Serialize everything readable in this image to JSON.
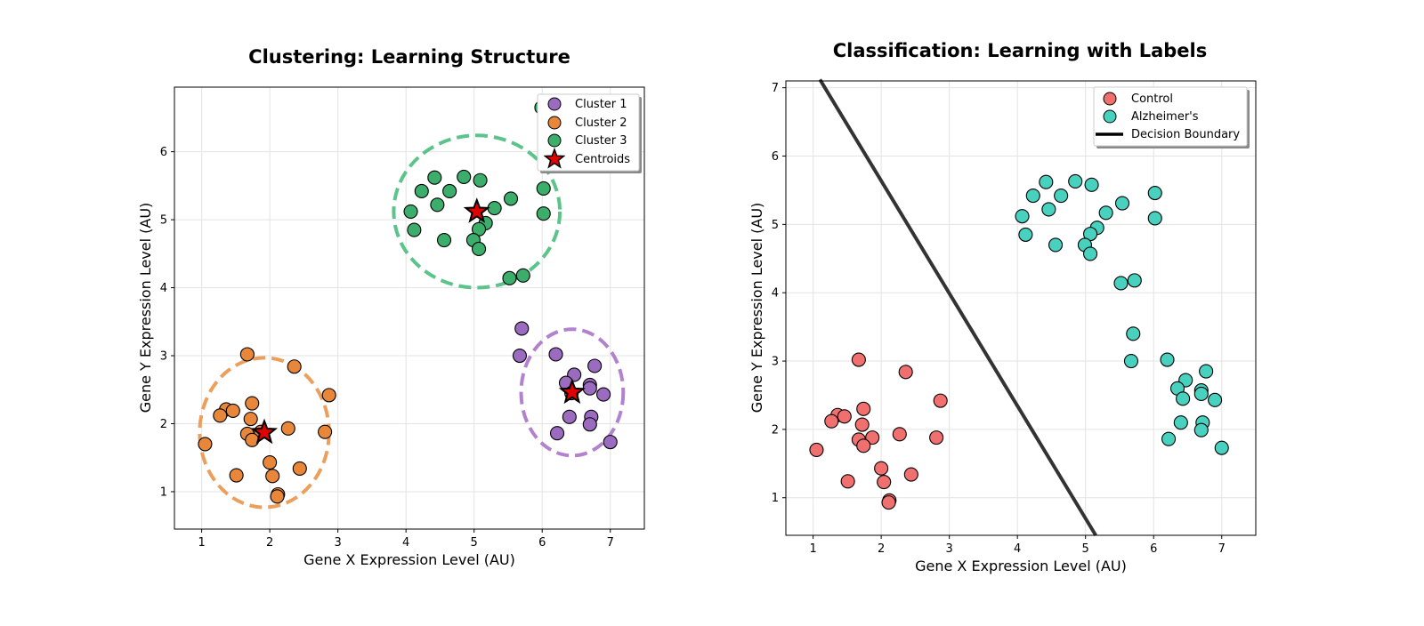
{
  "chart_data": [
    {
      "type": "scatter",
      "title": "Clustering: Learning Structure",
      "xlabel": "Gene X Expression Level (AU)",
      "ylabel": "Gene Y Expression Level (AU)",
      "xlim": [
        0.6,
        7.5
      ],
      "ylim": [
        0.45,
        6.95
      ],
      "xticks": [
        1,
        2,
        3,
        4,
        5,
        6,
        7
      ],
      "yticks": [
        1,
        2,
        3,
        4,
        5,
        6
      ],
      "grid": true,
      "legend_position": "top-right",
      "series": [
        {
          "name": "Cluster 1",
          "color": "#9b6bbf",
          "points": [
            [
              5.7,
              3.4
            ],
            [
              5.67,
              3.0
            ],
            [
              6.2,
              3.02
            ],
            [
              6.77,
              2.85
            ],
            [
              6.47,
              2.72
            ],
            [
              6.35,
              2.6
            ],
            [
              6.7,
              2.57
            ],
            [
              6.7,
              2.52
            ],
            [
              6.43,
              2.45
            ],
            [
              6.9,
              2.43
            ],
            [
              6.4,
              2.1
            ],
            [
              6.72,
              2.1
            ],
            [
              6.7,
              1.99
            ],
            [
              6.22,
              1.86
            ],
            [
              7.0,
              1.73
            ]
          ]
        },
        {
          "name": "Cluster 2",
          "color": "#e8873a",
          "points": [
            [
              1.67,
              3.02
            ],
            [
              2.36,
              2.84
            ],
            [
              2.87,
              2.42
            ],
            [
              1.74,
              2.3
            ],
            [
              1.36,
              2.21
            ],
            [
              1.46,
              2.19
            ],
            [
              1.27,
              2.12
            ],
            [
              1.72,
              2.07
            ],
            [
              2.27,
              1.93
            ],
            [
              1.87,
              1.88
            ],
            [
              2.81,
              1.88
            ],
            [
              1.67,
              1.85
            ],
            [
              1.74,
              1.76
            ],
            [
              1.05,
              1.7
            ],
            [
              2.0,
              1.43
            ],
            [
              2.44,
              1.34
            ],
            [
              1.51,
              1.24
            ],
            [
              2.04,
              1.23
            ],
            [
              2.12,
              0.96
            ],
            [
              2.11,
              0.93
            ]
          ]
        },
        {
          "name": "Cluster 3",
          "color": "#3aae6a",
          "points": [
            [
              5.99,
              6.65
            ],
            [
              4.85,
              5.63
            ],
            [
              4.42,
              5.62
            ],
            [
              5.09,
              5.58
            ],
            [
              4.64,
              5.42
            ],
            [
              4.23,
              5.42
            ],
            [
              6.02,
              5.46
            ],
            [
              5.54,
              5.31
            ],
            [
              4.46,
              5.22
            ],
            [
              5.3,
              5.17
            ],
            [
              4.07,
              5.12
            ],
            [
              6.02,
              5.09
            ],
            [
              5.17,
              4.95
            ],
            [
              4.12,
              4.85
            ],
            [
              5.07,
              4.86
            ],
            [
              4.56,
              4.7
            ],
            [
              4.99,
              4.7
            ],
            [
              5.07,
              4.57
            ],
            [
              5.52,
              4.14
            ],
            [
              5.72,
              4.18
            ]
          ]
        }
      ],
      "centroids": {
        "name": "Centroids",
        "color": "#e00000",
        "points": [
          [
            6.44,
            2.46
          ],
          [
            1.92,
            1.87
          ],
          [
            5.04,
            5.12
          ]
        ]
      },
      "ellipses": [
        {
          "cluster": "Cluster 1",
          "center": [
            6.44,
            2.46
          ],
          "radius": [
            0.75,
            0.93
          ],
          "color": "#b283cc"
        },
        {
          "cluster": "Cluster 2",
          "center": [
            1.92,
            1.87
          ],
          "radius": [
            0.95,
            1.1
          ],
          "color": "#ec9f5c"
        },
        {
          "cluster": "Cluster 3",
          "center": [
            5.04,
            5.12
          ],
          "radius": [
            1.22,
            1.12
          ],
          "color": "#5bc48a"
        }
      ]
    },
    {
      "type": "scatter",
      "title": "Classification: Learning with Labels",
      "xlabel": "Gene X Expression Level (AU)",
      "ylabel": "Gene Y Expression Level (AU)",
      "xlim": [
        0.6,
        7.5
      ],
      "ylim": [
        0.45,
        7.1
      ],
      "xticks": [
        1,
        2,
        3,
        4,
        5,
        6,
        7
      ],
      "yticks": [
        1,
        2,
        3,
        4,
        5,
        6,
        7
      ],
      "grid": true,
      "legend_position": "top-right",
      "series": [
        {
          "name": "Control",
          "color": "#f07070",
          "points": [
            [
              1.67,
              3.02
            ],
            [
              2.36,
              2.84
            ],
            [
              2.87,
              2.42
            ],
            [
              1.74,
              2.3
            ],
            [
              1.36,
              2.21
            ],
            [
              1.46,
              2.19
            ],
            [
              1.27,
              2.12
            ],
            [
              1.72,
              2.07
            ],
            [
              2.27,
              1.93
            ],
            [
              1.87,
              1.88
            ],
            [
              2.81,
              1.88
            ],
            [
              1.67,
              1.85
            ],
            [
              1.74,
              1.76
            ],
            [
              1.05,
              1.7
            ],
            [
              2.0,
              1.43
            ],
            [
              2.44,
              1.34
            ],
            [
              1.51,
              1.24
            ],
            [
              2.04,
              1.23
            ],
            [
              2.12,
              0.96
            ],
            [
              2.11,
              0.93
            ]
          ]
        },
        {
          "name": "Alzheimer's",
          "color": "#48d1be",
          "points": [
            [
              4.85,
              5.63
            ],
            [
              4.42,
              5.62
            ],
            [
              5.09,
              5.58
            ],
            [
              4.64,
              5.42
            ],
            [
              4.23,
              5.42
            ],
            [
              6.02,
              5.46
            ],
            [
              5.54,
              5.31
            ],
            [
              4.46,
              5.22
            ],
            [
              5.3,
              5.17
            ],
            [
              4.07,
              5.12
            ],
            [
              6.02,
              5.09
            ],
            [
              5.17,
              4.95
            ],
            [
              4.12,
              4.85
            ],
            [
              5.07,
              4.86
            ],
            [
              4.56,
              4.7
            ],
            [
              4.99,
              4.7
            ],
            [
              5.07,
              4.57
            ],
            [
              5.52,
              4.14
            ],
            [
              5.72,
              4.18
            ],
            [
              5.7,
              3.4
            ],
            [
              5.67,
              3.0
            ],
            [
              6.2,
              3.02
            ],
            [
              6.77,
              2.85
            ],
            [
              6.47,
              2.72
            ],
            [
              6.35,
              2.6
            ],
            [
              6.7,
              2.57
            ],
            [
              6.7,
              2.52
            ],
            [
              6.43,
              2.45
            ],
            [
              6.9,
              2.43
            ],
            [
              6.4,
              2.1
            ],
            [
              6.72,
              2.1
            ],
            [
              6.7,
              1.99
            ],
            [
              6.22,
              1.86
            ],
            [
              7.0,
              1.73
            ]
          ]
        }
      ],
      "decision_boundary": {
        "name": "Decision Boundary",
        "color": "#333333",
        "points": [
          [
            1.1,
            7.12
          ],
          [
            5.15,
            0.45
          ]
        ]
      }
    }
  ]
}
